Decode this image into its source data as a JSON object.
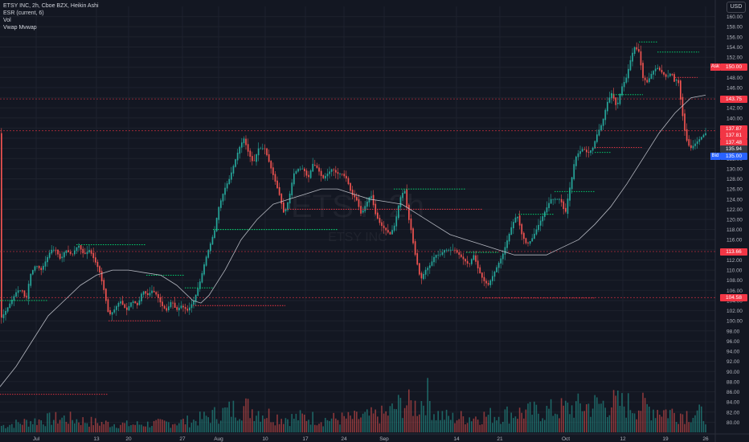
{
  "legend": {
    "main": "ETSY INC, 2h, Cboe BZX, Heikin Ashi",
    "ind1": "ESR (current, 6)",
    "ind2": "Vol",
    "ind3": "Vwap Mvwap"
  },
  "currency_label": "USD",
  "watermark": {
    "symbol": "ETSY, 2h",
    "name": "ETSY INC"
  },
  "price_tags": [
    {
      "text": "150.00",
      "price": 150.0,
      "color": "#f23645",
      "prefix": "Ask"
    },
    {
      "text": "143.75",
      "price": 143.75,
      "color": "#f23645"
    },
    {
      "text": "137.87",
      "price": 137.87,
      "color": "#f23645"
    },
    {
      "text": "137.81",
      "price": 137.81,
      "color": "#f23645"
    },
    {
      "text": "137.48",
      "price": 137.48,
      "color": "#f23645"
    },
    {
      "text": "135.94",
      "price": 135.94,
      "color": "#363a45"
    },
    {
      "text": "135.00",
      "price": 135.0,
      "color": "#2962ff",
      "prefix": "Bid"
    },
    {
      "text": "113.66",
      "price": 113.66,
      "color": "#f23645"
    },
    {
      "text": "104.58",
      "price": 104.58,
      "color": "#f23645"
    }
  ],
  "chart_data": {
    "type": "candlestick",
    "style": "Heikin Ashi",
    "ylim": [
      78,
      162
    ],
    "y_ticks": [
      80,
      82,
      84,
      86,
      88,
      90,
      92,
      94,
      96,
      98,
      100,
      102,
      104,
      106,
      108,
      110,
      112,
      114,
      116,
      118,
      120,
      122,
      124,
      126,
      128,
      130,
      132,
      134,
      136,
      138,
      140,
      142,
      144,
      146,
      148,
      150,
      152,
      154,
      156,
      158,
      160
    ],
    "x_ticks": [
      "Jul",
      "13",
      "20",
      "27",
      "Aug",
      "10",
      "17",
      "24",
      "Sep",
      "14",
      "21",
      "Oct",
      "12",
      "19",
      "26"
    ],
    "price_path": [
      [
        0,
        100
      ],
      [
        8,
        102
      ],
      [
        15,
        104
      ],
      [
        22,
        106
      ],
      [
        28,
        106
      ],
      [
        33,
        104
      ],
      [
        38,
        109
      ],
      [
        45,
        111
      ],
      [
        52,
        110
      ],
      [
        58,
        112
      ],
      [
        64,
        114
      ],
      [
        70,
        114
      ],
      [
        76,
        112
      ],
      [
        82,
        114
      ],
      [
        90,
        113
      ],
      [
        98,
        115
      ],
      [
        105,
        113
      ],
      [
        112,
        114
      ],
      [
        118,
        112
      ],
      [
        124,
        110
      ],
      [
        130,
        106
      ],
      [
        136,
        101
      ],
      [
        142,
        102
      ],
      [
        150,
        104
      ],
      [
        158,
        102
      ],
      [
        165,
        104
      ],
      [
        172,
        103
      ],
      [
        178,
        106
      ],
      [
        184,
        105
      ],
      [
        190,
        106
      ],
      [
        196,
        105
      ],
      [
        202,
        103
      ],
      [
        208,
        102
      ],
      [
        214,
        104
      ],
      [
        220,
        102
      ],
      [
        226,
        103
      ],
      [
        234,
        102
      ],
      [
        242,
        104
      ],
      [
        250,
        108
      ],
      [
        256,
        112
      ],
      [
        262,
        115
      ],
      [
        268,
        118
      ],
      [
        272,
        122
      ],
      [
        276,
        124
      ],
      [
        280,
        126
      ],
      [
        286,
        128
      ],
      [
        292,
        131
      ],
      [
        298,
        134
      ],
      [
        304,
        136
      ],
      [
        310,
        133
      ],
      [
        316,
        131
      ],
      [
        322,
        134
      ],
      [
        330,
        134
      ],
      [
        336,
        131
      ],
      [
        342,
        128
      ],
      [
        348,
        125
      ],
      [
        354,
        121
      ],
      [
        360,
        124
      ],
      [
        366,
        129
      ],
      [
        372,
        130
      ],
      [
        378,
        130
      ],
      [
        384,
        128
      ],
      [
        390,
        131
      ],
      [
        396,
        130
      ],
      [
        402,
        128
      ],
      [
        408,
        129
      ],
      [
        414,
        130
      ],
      [
        420,
        129
      ],
      [
        426,
        129
      ],
      [
        432,
        128
      ],
      [
        438,
        125
      ],
      [
        444,
        124
      ],
      [
        450,
        121
      ],
      [
        456,
        123
      ],
      [
        462,
        125
      ],
      [
        468,
        121
      ],
      [
        474,
        119
      ],
      [
        480,
        118
      ],
      [
        486,
        117
      ],
      [
        492,
        119
      ],
      [
        498,
        124
      ],
      [
        504,
        126
      ],
      [
        508,
        121
      ],
      [
        512,
        118
      ],
      [
        516,
        114
      ],
      [
        520,
        111
      ],
      [
        524,
        108
      ],
      [
        530,
        110
      ],
      [
        536,
        111
      ],
      [
        542,
        113
      ],
      [
        548,
        113
      ],
      [
        554,
        114
      ],
      [
        560,
        114
      ],
      [
        566,
        114
      ],
      [
        572,
        113
      ],
      [
        578,
        112
      ],
      [
        584,
        111
      ],
      [
        590,
        113
      ],
      [
        596,
        110
      ],
      [
        602,
        108
      ],
      [
        608,
        107
      ],
      [
        614,
        109
      ],
      [
        620,
        111
      ],
      [
        626,
        113
      ],
      [
        632,
        116
      ],
      [
        638,
        119
      ],
      [
        644,
        121
      ],
      [
        650,
        117
      ],
      [
        656,
        115
      ],
      [
        662,
        116
      ],
      [
        668,
        118
      ],
      [
        674,
        120
      ],
      [
        680,
        122
      ],
      [
        686,
        124
      ],
      [
        692,
        124
      ],
      [
        698,
        124
      ],
      [
        704,
        121
      ],
      [
        708,
        125
      ],
      [
        712,
        128
      ],
      [
        716,
        132
      ],
      [
        720,
        133
      ],
      [
        726,
        134
      ],
      [
        732,
        133
      ],
      [
        738,
        134
      ],
      [
        744,
        137
      ],
      [
        750,
        139
      ],
      [
        756,
        143
      ],
      [
        762,
        145
      ],
      [
        768,
        142
      ],
      [
        774,
        146
      ],
      [
        780,
        148
      ],
      [
        786,
        152
      ],
      [
        790,
        154
      ],
      [
        796,
        153
      ],
      [
        800,
        148
      ],
      [
        806,
        147
      ],
      [
        812,
        149
      ],
      [
        818,
        150
      ],
      [
        824,
        149
      ],
      [
        830,
        148
      ],
      [
        836,
        149
      ],
      [
        840,
        147
      ],
      [
        844,
        148
      ],
      [
        848,
        143
      ],
      [
        852,
        138
      ],
      [
        856,
        135
      ],
      [
        860,
        134
      ],
      [
        866,
        135
      ],
      [
        872,
        136
      ],
      [
        878,
        137
      ]
    ],
    "mvwap_path": [
      [
        0,
        87
      ],
      [
        20,
        91
      ],
      [
        40,
        96
      ],
      [
        60,
        101
      ],
      [
        80,
        104
      ],
      [
        100,
        107
      ],
      [
        120,
        109
      ],
      [
        140,
        110
      ],
      [
        160,
        110
      ],
      [
        180,
        109.5
      ],
      [
        200,
        109
      ],
      [
        220,
        107
      ],
      [
        240,
        104
      ],
      [
        250,
        103.5
      ],
      [
        260,
        105
      ],
      [
        280,
        110
      ],
      [
        300,
        116
      ],
      [
        320,
        120
      ],
      [
        340,
        123
      ],
      [
        360,
        124
      ],
      [
        380,
        125
      ],
      [
        400,
        126
      ],
      [
        420,
        126
      ],
      [
        440,
        125
      ],
      [
        460,
        124
      ],
      [
        480,
        123.5
      ],
      [
        500,
        123
      ],
      [
        520,
        121
      ],
      [
        540,
        119
      ],
      [
        560,
        117
      ],
      [
        580,
        116
      ],
      [
        600,
        115
      ],
      [
        620,
        114
      ],
      [
        640,
        113
      ],
      [
        660,
        113
      ],
      [
        680,
        113
      ],
      [
        700,
        114.5
      ],
      [
        720,
        116
      ],
      [
        740,
        119
      ],
      [
        760,
        122.5
      ],
      [
        780,
        127
      ],
      [
        800,
        132
      ],
      [
        820,
        137
      ],
      [
        840,
        141
      ],
      [
        860,
        144
      ],
      [
        878,
        144.5
      ]
    ],
    "volume_path": [
      [
        0,
        10
      ],
      [
        40,
        18
      ],
      [
        80,
        22
      ],
      [
        120,
        15
      ],
      [
        160,
        12
      ],
      [
        200,
        14
      ],
      [
        240,
        18
      ],
      [
        280,
        32
      ],
      [
        300,
        40
      ],
      [
        320,
        34
      ],
      [
        340,
        25
      ],
      [
        360,
        22
      ],
      [
        380,
        24
      ],
      [
        400,
        20
      ],
      [
        440,
        22
      ],
      [
        480,
        28
      ],
      [
        500,
        45
      ],
      [
        520,
        40
      ],
      [
        530,
        60
      ],
      [
        540,
        30
      ],
      [
        560,
        22
      ],
      [
        600,
        25
      ],
      [
        640,
        30
      ],
      [
        680,
        33
      ],
      [
        720,
        40
      ],
      [
        760,
        45
      ],
      [
        800,
        40
      ],
      [
        840,
        30
      ],
      [
        878,
        28
      ]
    ],
    "support_lines": [
      {
        "x1": 0,
        "x2": 60,
        "price": 104,
        "color": "#00e676"
      },
      {
        "x1": 95,
        "x2": 182,
        "price": 115,
        "color": "#00e676"
      },
      {
        "x1": 182,
        "x2": 230,
        "price": 109,
        "color": "#00e676"
      },
      {
        "x1": 230,
        "x2": 265,
        "price": 106.5,
        "color": "#00e676"
      },
      {
        "x1": 265,
        "x2": 420,
        "price": 118,
        "color": "#00e676"
      },
      {
        "x1": 490,
        "x2": 580,
        "price": 126,
        "color": "#00e676"
      },
      {
        "x1": 580,
        "x2": 620,
        "price": 113.5,
        "color": "#00e676"
      },
      {
        "x1": 645,
        "x2": 690,
        "price": 121,
        "color": "#00e676"
      },
      {
        "x1": 690,
        "x2": 740,
        "price": 125.5,
        "color": "#00e676"
      },
      {
        "x1": 740,
        "x2": 760,
        "price": 133.2,
        "color": "#00e676"
      },
      {
        "x1": 760,
        "x2": 800,
        "price": 144.6,
        "color": "#00e676"
      },
      {
        "x1": 795,
        "x2": 818,
        "price": 155,
        "color": "#00e676"
      },
      {
        "x1": 818,
        "x2": 870,
        "price": 153,
        "color": "#00e676"
      },
      {
        "x1": 135,
        "x2": 200,
        "price": 100,
        "color": "#f23645"
      },
      {
        "x1": 240,
        "x2": 355,
        "price": 103,
        "color": "#f23645"
      },
      {
        "x1": 355,
        "x2": 600,
        "price": 122,
        "color": "#f23645"
      },
      {
        "x1": 600,
        "x2": 740,
        "price": 104.5,
        "color": "#f23645"
      },
      {
        "x1": 740,
        "x2": 800,
        "price": 134.2,
        "color": "#f23645"
      },
      {
        "x1": 840,
        "x2": 868,
        "price": 148,
        "color": "#f23645"
      },
      {
        "x1": 0,
        "x2": 135,
        "price": 85.5,
        "color": "#f23645"
      }
    ],
    "h_lines": [
      {
        "price": 143.75,
        "color": "#f23645"
      },
      {
        "price": 137.48,
        "color": "#f23645"
      },
      {
        "price": 113.66,
        "color": "#f23645"
      },
      {
        "price": 104.58,
        "color": "#f23645"
      }
    ]
  },
  "colors": {
    "up": "#26a69a",
    "down": "#ef5350",
    "bg": "#131722",
    "grid": "#1e222d",
    "mvwap": "#d1d4dc"
  }
}
